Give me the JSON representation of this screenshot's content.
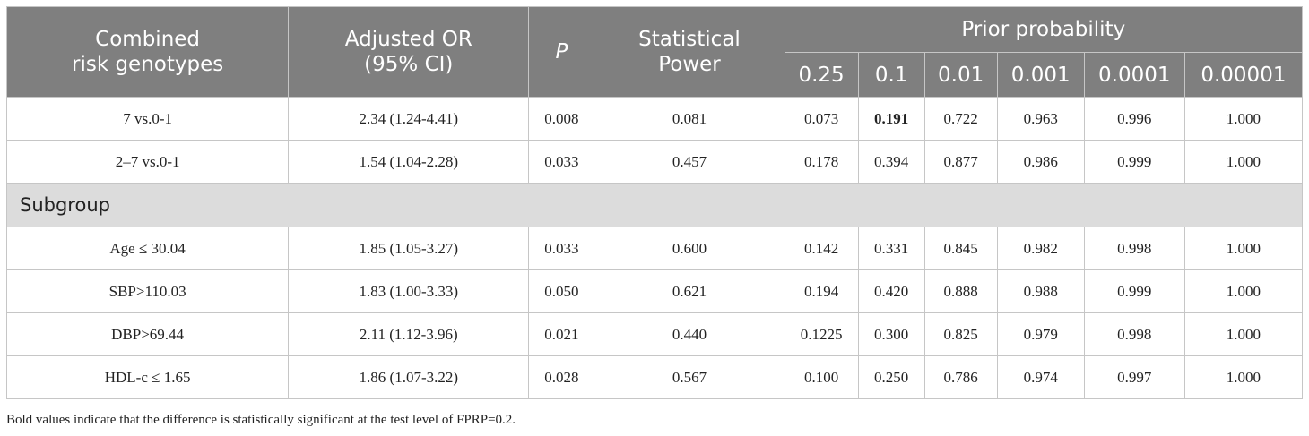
{
  "headers": {
    "col1": "Combined\nrisk genotypes",
    "col2": "Adjusted OR\n(95% CI)",
    "col3": "P",
    "col4": "Statistical\nPower",
    "group": "Prior probability",
    "priors": [
      "0.25",
      "0.1",
      "0.01",
      "0.001",
      "0.0001",
      "0.00001"
    ]
  },
  "rows_main": [
    [
      "7 vs.0-1",
      "2.34 (1.24-4.41)",
      "0.008",
      "0.081",
      "0.073",
      "0.191",
      "0.722",
      "0.963",
      "0.996",
      "1.000"
    ],
    [
      "2–7 vs.0-1",
      "1.54 (1.04-2.28)",
      "0.033",
      "0.457",
      "0.178",
      "0.394",
      "0.877",
      "0.986",
      "0.999",
      "1.000"
    ]
  ],
  "subgroup_label": "Subgroup",
  "rows_sub": [
    [
      "Age ≤ 30.04",
      "1.85 (1.05-3.27)",
      "0.033",
      "0.600",
      "0.142",
      "0.331",
      "0.845",
      "0.982",
      "0.998",
      "1.000"
    ],
    [
      "SBP>110.03",
      "1.83 (1.00-3.33)",
      "0.050",
      "0.621",
      "0.194",
      "0.420",
      "0.888",
      "0.988",
      "0.999",
      "1.000"
    ],
    [
      "DBP>69.44",
      "2.11 (1.12-3.96)",
      "0.021",
      "0.440",
      "0.1225",
      "0.300",
      "0.825",
      "0.979",
      "0.998",
      "1.000"
    ],
    [
      "HDL-c ≤ 1.65",
      "1.86 (1.07-3.22)",
      "0.028",
      "0.567",
      "0.100",
      "0.250",
      "0.786",
      "0.974",
      "0.997",
      "1.000"
    ]
  ],
  "footnote": "Bold values indicate that the difference is statistically significant at the test level of FPRP=0.2.",
  "colors": {
    "header_bg": "#7f7f7f",
    "subgroup_bg": "#dcdcdc",
    "border": "#c6c6c6"
  }
}
